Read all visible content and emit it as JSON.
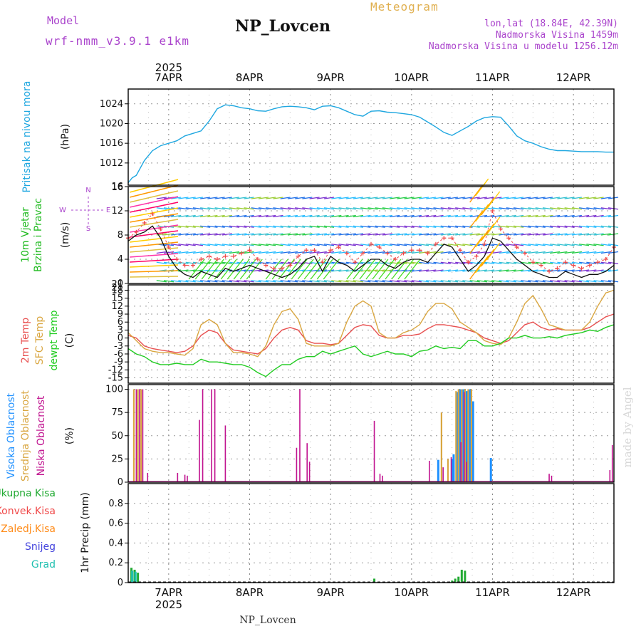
{
  "header": {
    "model_label": "Model",
    "model_name": "wrf-nmm_v3.9.1 e1km",
    "title": "NP_Lovcen",
    "product": "Meteogram",
    "coords": "lon,lat (18.84E, 42.39N)",
    "elev": "Nadmorska Visina 1459m",
    "elev_model": "Nadmorska Visina u modelu 1256.12m",
    "year": "2025",
    "footer": "NP_Lovcen",
    "credit": "made by Angel"
  },
  "colors": {
    "pressure": "#1fa7e0",
    "wind_speed": "#111111",
    "wind_gust_marker": "#f04848",
    "t2m": "#e85050",
    "tsfc": "#d9a640",
    "dewpt": "#22cc22",
    "cloud_high": "#1e90ff",
    "cloud_mid": "#d9a640",
    "cloud_low": "#c0128f",
    "precip_total": "#22aa33",
    "precip_conv": "#f04848",
    "precip_frz": "#ff8c1a",
    "precip_snow": "#4444dd",
    "precip_grad": "#20c0b0",
    "label_green": "#22bb22",
    "label_purple": "#aa44cc"
  },
  "chart_data": [
    {
      "type": "line",
      "name": "pressure",
      "ylabel_a": "Pritisak na nivou mora",
      "ylabel_b": "(hPa)",
      "x_ticks": [
        "7APR",
        "8APR",
        "9APR",
        "10APR",
        "11APR",
        "12APR"
      ],
      "x_tick_days": [
        1,
        2,
        3,
        4,
        5,
        6
      ],
      "xlim_days": [
        0.5,
        6.5
      ],
      "ylim": [
        1007.5,
        1027
      ],
      "yticks": [
        1012,
        1016,
        1020,
        1024
      ],
      "grid": true,
      "x": [
        0.5,
        0.55,
        0.6,
        0.7,
        0.8,
        0.9,
        1.0,
        1.1,
        1.2,
        1.3,
        1.4,
        1.5,
        1.6,
        1.7,
        1.8,
        1.9,
        2.0,
        2.1,
        2.2,
        2.3,
        2.4,
        2.5,
        2.6,
        2.7,
        2.8,
        2.9,
        3.0,
        3.1,
        3.2,
        3.3,
        3.4,
        3.5,
        3.6,
        3.7,
        3.8,
        3.9,
        4.0,
        4.1,
        4.2,
        4.3,
        4.4,
        4.5,
        4.6,
        4.7,
        4.8,
        4.9,
        5.0,
        5.1,
        5.2,
        5.3,
        5.4,
        5.5,
        5.6,
        5.7,
        5.8,
        5.9,
        6.0,
        6.1,
        6.2,
        6.3,
        6.4,
        6.5
      ],
      "y": [
        1008.0,
        1009.0,
        1009.5,
        1012.5,
        1014.5,
        1015.5,
        1016.0,
        1016.5,
        1017.5,
        1018.0,
        1018.5,
        1020.5,
        1023.0,
        1023.8,
        1023.6,
        1023.2,
        1023.0,
        1022.6,
        1022.5,
        1023.0,
        1023.4,
        1023.5,
        1023.4,
        1023.2,
        1022.8,
        1023.5,
        1023.6,
        1023.2,
        1022.5,
        1021.8,
        1021.5,
        1022.5,
        1022.6,
        1022.3,
        1022.2,
        1022.0,
        1021.8,
        1021.3,
        1020.3,
        1019.3,
        1018.2,
        1017.6,
        1018.5,
        1019.4,
        1020.5,
        1021.2,
        1021.4,
        1021.3,
        1019.5,
        1017.5,
        1016.5,
        1016.0,
        1015.3,
        1014.8,
        1014.5,
        1014.5,
        1014.4,
        1014.3,
        1014.3,
        1014.3,
        1014.2,
        1014.2
      ]
    },
    {
      "type": "line",
      "name": "wind",
      "ylabel_a": "10m Vjetar",
      "ylabel_b": "Brzina i Pravac",
      "ylabel_c": "(m/s)",
      "compass": [
        "N",
        "W",
        "E",
        "S"
      ],
      "ylim": [
        0,
        16
      ],
      "yticks": [
        0,
        4,
        8,
        12,
        16
      ],
      "top_tick": "16",
      "bottom_tick": "21",
      "grid": true,
      "speed_x": [
        0.5,
        0.6,
        0.7,
        0.8,
        0.9,
        1.0,
        1.1,
        1.2,
        1.3,
        1.4,
        1.5,
        1.6,
        1.7,
        1.8,
        1.9,
        2.0,
        2.1,
        2.2,
        2.3,
        2.4,
        2.5,
        2.6,
        2.7,
        2.8,
        2.9,
        3.0,
        3.1,
        3.2,
        3.3,
        3.4,
        3.5,
        3.6,
        3.7,
        3.8,
        3.9,
        4.0,
        4.1,
        4.2,
        4.3,
        4.4,
        4.5,
        4.6,
        4.7,
        4.8,
        4.9,
        5.0,
        5.1,
        5.2,
        5.3,
        5.4,
        5.5,
        5.6,
        5.7,
        5.8,
        5.9,
        6.0,
        6.1,
        6.2,
        6.3,
        6.4,
        6.5
      ],
      "speed_y": [
        7.0,
        8.0,
        8.5,
        9.5,
        7.5,
        4.5,
        2.5,
        1.5,
        1.0,
        2.0,
        1.5,
        1.0,
        2.5,
        2.0,
        2.5,
        3.0,
        2.5,
        2.0,
        1.5,
        1.0,
        1.5,
        2.5,
        4.0,
        4.5,
        2.0,
        4.5,
        3.5,
        3.0,
        2.0,
        3.0,
        4.0,
        4.0,
        3.0,
        2.5,
        3.5,
        4.0,
        4.0,
        3.5,
        5.0,
        6.5,
        6.0,
        4.0,
        2.0,
        3.0,
        4.5,
        7.5,
        7.0,
        5.5,
        4.0,
        3.0,
        2.0,
        1.5,
        1.0,
        1.0,
        2.0,
        1.5,
        1.0,
        1.5,
        1.5,
        2.0,
        3.0
      ],
      "gust_y": [
        7.5,
        8.5,
        10.0,
        11.5,
        9.0,
        6.0,
        4.0,
        3.0,
        3.0,
        4.0,
        4.5,
        4.0,
        4.5,
        4.5,
        5.0,
        5.5,
        4.0,
        3.0,
        2.5,
        2.5,
        3.0,
        4.5,
        5.5,
        5.5,
        3.5,
        5.5,
        6.0,
        5.0,
        3.5,
        5.0,
        6.5,
        6.0,
        5.0,
        4.0,
        5.0,
        5.5,
        5.5,
        5.0,
        6.5,
        7.5,
        7.5,
        5.5,
        3.5,
        4.5,
        6.5,
        12.0,
        9.0,
        7.5,
        6.0,
        5.0,
        3.5,
        3.0,
        2.0,
        2.5,
        3.5,
        3.0,
        2.5,
        3.0,
        3.5,
        4.0,
        6.0
      ]
    },
    {
      "type": "line",
      "name": "temperature",
      "ylabel_a": "2m Temp",
      "ylabel_b": "SFC Temp",
      "ylabel_c": "dewpt Temp",
      "ylabel_d": "(C)",
      "ylim": [
        -17,
        20
      ],
      "yticks": [
        -15,
        -12,
        -9,
        -6,
        -3,
        0,
        3,
        6,
        9,
        12,
        15,
        18
      ],
      "top_tick": "21",
      "grid": true,
      "x": [
        0.5,
        0.6,
        0.7,
        0.8,
        0.9,
        1.0,
        1.1,
        1.2,
        1.3,
        1.4,
        1.5,
        1.6,
        1.7,
        1.8,
        1.9,
        2.0,
        2.1,
        2.2,
        2.3,
        2.4,
        2.5,
        2.6,
        2.7,
        2.8,
        2.9,
        3.0,
        3.1,
        3.2,
        3.3,
        3.4,
        3.5,
        3.6,
        3.7,
        3.8,
        3.9,
        4.0,
        4.1,
        4.2,
        4.3,
        4.4,
        4.5,
        4.6,
        4.7,
        4.8,
        4.9,
        5.0,
        5.1,
        5.2,
        5.3,
        5.4,
        5.5,
        5.6,
        5.7,
        5.8,
        5.9,
        6.0,
        6.1,
        6.2,
        6.3,
        6.4,
        6.5
      ],
      "series": [
        {
          "name": "2m Temp",
          "key": "t2m",
          "values": [
            1.0,
            0.0,
            -3.0,
            -4.0,
            -4.5,
            -5.0,
            -5.5,
            -5.0,
            -3.0,
            1.0,
            3.0,
            2.0,
            -2.0,
            -4.5,
            -5.0,
            -5.5,
            -6.0,
            -4.0,
            0.0,
            3.0,
            4.0,
            3.0,
            -1.0,
            -2.0,
            -2.0,
            -2.5,
            -2.0,
            1.0,
            4.0,
            5.0,
            4.5,
            1.0,
            0.0,
            0.0,
            1.0,
            1.0,
            1.5,
            3.5,
            5.0,
            5.0,
            4.5,
            4.0,
            3.0,
            2.0,
            0.0,
            -1.0,
            -2.0,
            -1.0,
            2.0,
            5.0,
            6.0,
            4.0,
            3.0,
            3.5,
            3.0,
            3.0,
            3.0,
            4.0,
            6.0,
            8.0,
            9.0
          ]
        },
        {
          "name": "SFC Temp",
          "key": "tsfc",
          "values": [
            2.0,
            -1.0,
            -4.0,
            -5.0,
            -5.5,
            -5.5,
            -6.0,
            -6.5,
            -4.0,
            5.0,
            7.0,
            5.0,
            -2.0,
            -5.5,
            -5.5,
            -6.0,
            -7.0,
            -3.0,
            5.0,
            10.0,
            11.0,
            7.0,
            -2.0,
            -3.0,
            -3.0,
            -3.0,
            -2.0,
            6.0,
            12.0,
            14.0,
            12.0,
            2.0,
            0.0,
            0.0,
            2.0,
            3.0,
            5.0,
            10.0,
            13.0,
            13.0,
            11.0,
            6.0,
            4.0,
            2.0,
            -1.0,
            -2.0,
            -2.5,
            0.0,
            6.0,
            13.0,
            16.0,
            11.0,
            5.0,
            4.0,
            3.0,
            3.0,
            3.0,
            6.0,
            12.0,
            17.0,
            18.0
          ]
        },
        {
          "name": "dewpt Temp",
          "key": "dewpt",
          "values": [
            -4.0,
            -6.0,
            -7.0,
            -9.0,
            -10.0,
            -10.0,
            -9.5,
            -10.0,
            -10.0,
            -8.0,
            -9.0,
            -9.0,
            -9.5,
            -10.0,
            -10.0,
            -11.0,
            -13.0,
            -14.5,
            -12.0,
            -10.0,
            -10.0,
            -8.0,
            -7.0,
            -7.0,
            -5.0,
            -6.0,
            -5.0,
            -4.0,
            -3.0,
            -6.0,
            -7.0,
            -6.0,
            -5.0,
            -6.0,
            -6.0,
            -7.0,
            -5.0,
            -4.5,
            -3.0,
            -4.0,
            -3.5,
            -4.0,
            -1.0,
            -1.0,
            -3.0,
            -3.0,
            -2.0,
            0.0,
            0.0,
            1.0,
            0.0,
            0.0,
            0.5,
            0.0,
            1.0,
            1.5,
            2.0,
            3.0,
            2.5,
            4.0,
            5.0
          ]
        }
      ]
    },
    {
      "type": "bar",
      "name": "clouds",
      "ylabel_a": "Visoka Oblacnost",
      "ylabel_b": "Srednja Oblacnost",
      "ylabel_c": "Niska Oblacnost",
      "ylabel_d": "(%)",
      "ylim": [
        0,
        105
      ],
      "yticks": [
        0,
        25,
        50,
        75,
        100
      ],
      "grid": true,
      "series": [
        {
          "name": "Visoka Oblacnost",
          "key": "cloud_high",
          "x": [
            4.33,
            4.5,
            4.52,
            4.56,
            4.6,
            4.64,
            4.68,
            4.72,
            4.76,
            4.98
          ],
          "values": [
            24,
            25,
            30,
            97,
            100,
            100,
            98,
            100,
            87,
            26
          ]
        },
        {
          "name": "Srednja Oblacnost",
          "key": "cloud_mid",
          "x": [
            0.57,
            0.62,
            0.66,
            4.37,
            4.45,
            4.55,
            4.58,
            4.62,
            4.66,
            4.7,
            4.74
          ],
          "values": [
            100,
            100,
            100,
            75,
            25,
            98,
            100,
            100,
            100,
            100,
            100
          ]
        },
        {
          "name": "Niska Oblacnost",
          "key": "cloud_low",
          "x": [
            0.6,
            0.64,
            0.68,
            0.74,
            1.11,
            1.2,
            1.23,
            1.38,
            1.42,
            1.53,
            1.57,
            1.7,
            2.58,
            2.62,
            2.71,
            2.74,
            3.54,
            3.61,
            3.64,
            4.22,
            4.39,
            4.49,
            4.61,
            4.65,
            4.68,
            5.7,
            5.73,
            6.45,
            6.48
          ],
          "values": [
            100,
            100,
            100,
            10,
            10,
            8,
            7,
            67,
            100,
            100,
            100,
            61,
            37,
            100,
            42,
            22,
            66,
            9,
            7,
            23,
            16,
            27,
            43,
            97,
            22,
            9,
            7,
            13,
            40
          ]
        }
      ]
    },
    {
      "type": "bar",
      "name": "precip",
      "ylabel_a": "Ukupna Kisa",
      "ylabel_b": "Konvek.Kisa",
      "ylabel_c": "Zaledj.Kisa",
      "ylabel_d": "Snijeg",
      "ylabel_e": "Grad",
      "ylabel_f": "1hr Precip (mm)",
      "ylim": [
        0,
        1.0
      ],
      "yticks": [
        0,
        0.2,
        0.4,
        0.6,
        0.8
      ],
      "grid": true,
      "series": [
        {
          "name": "Ukupna Kisa",
          "key": "precip_total",
          "x": [
            0.54,
            0.58,
            0.62,
            3.54,
            4.5,
            4.54,
            4.58,
            4.62,
            4.66
          ],
          "values": [
            0.15,
            0.13,
            0.1,
            0.04,
            0.02,
            0.04,
            0.06,
            0.13,
            0.12
          ]
        },
        {
          "name": "Grad",
          "key": "precip_grad",
          "x": [
            0.55,
            0.59
          ],
          "values": [
            0.12,
            0.11
          ]
        }
      ]
    }
  ]
}
